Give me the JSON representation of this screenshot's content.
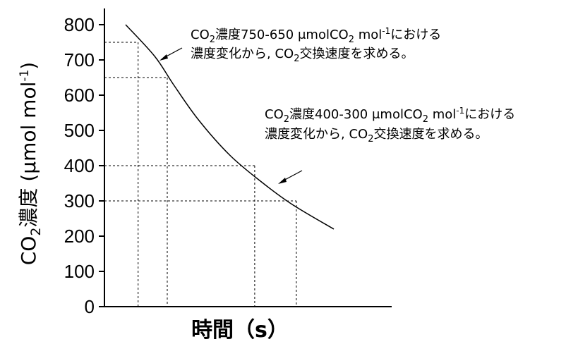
{
  "chart_data": {
    "type": "line",
    "ylabel": {
      "pre": "CO",
      "sub": "2",
      "post": "濃度 (μmol mol",
      "sup": "-1",
      "end": ")"
    },
    "xlabel": "時間（s）",
    "ylim": [
      0,
      800
    ],
    "yticks": [
      0,
      100,
      200,
      300,
      400,
      500,
      600,
      700,
      800
    ],
    "xtick_labels": [],
    "curve": [
      {
        "x": 0.0,
        "y": 800
      },
      {
        "x": 0.14,
        "y": 710
      },
      {
        "x": 0.23,
        "y": 630
      },
      {
        "x": 0.35,
        "y": 530
      },
      {
        "x": 0.5,
        "y": 430
      },
      {
        "x": 0.65,
        "y": 355
      },
      {
        "x": 0.8,
        "y": 290
      },
      {
        "x": 1.0,
        "y": 220
      }
    ],
    "guides": [
      {
        "y": 750,
        "x": 0.06
      },
      {
        "y": 650,
        "x": 0.2
      },
      {
        "y": 400,
        "x": 0.62
      },
      {
        "y": 300,
        "x": 0.82
      }
    ],
    "annotations": [
      {
        "line1": {
          "a": "CO",
          "sub": "2",
          "b": "濃度750-650 μmolCO",
          "sub2": "2",
          "c": " mol",
          "sup": "-1",
          "d": "における"
        },
        "line2": {
          "a": "濃度変化から, CO",
          "sub": "2",
          "b": "交換速度を求める。"
        }
      },
      {
        "line1": {
          "a": "CO",
          "sub": "2",
          "b": "濃度400-300 μmolCO",
          "sub2": "2",
          "c": " mol",
          "sup": "-1",
          "d": "における"
        },
        "line2": {
          "a": "濃度変化から, CO",
          "sub": "2",
          "b": "交換速度を求める。"
        }
      }
    ]
  }
}
